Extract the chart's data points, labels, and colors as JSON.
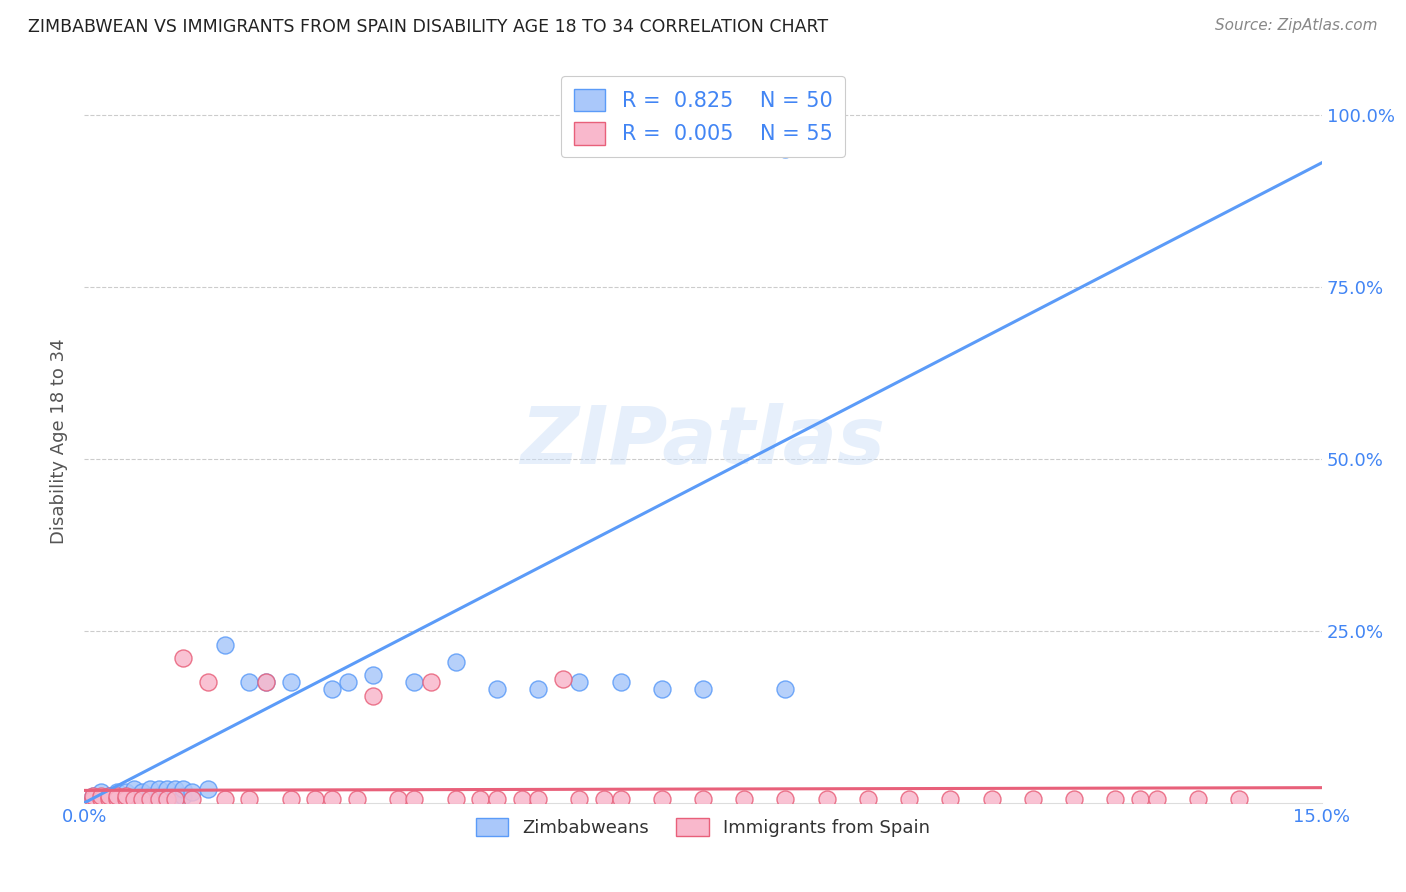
{
  "title": "ZIMBABWEAN VS IMMIGRANTS FROM SPAIN DISABILITY AGE 18 TO 34 CORRELATION CHART",
  "source": "Source: ZipAtlas.com",
  "ylabel": "Disability Age 18 to 34",
  "xlim": [
    0.0,
    0.15
  ],
  "ylim": [
    0.0,
    1.05
  ],
  "xtick_positions": [
    0.0,
    0.05,
    0.1,
    0.15
  ],
  "xtick_labels": [
    "0.0%",
    "",
    "",
    "15.0%"
  ],
  "ytick_positions": [
    0.0,
    0.25,
    0.5,
    0.75,
    1.0
  ],
  "ytick_labels": [
    "",
    "25.0%",
    "50.0%",
    "75.0%",
    "100.0%"
  ],
  "blue_R": 0.825,
  "blue_N": 50,
  "pink_R": 0.005,
  "pink_N": 55,
  "blue_color": "#aac8fa",
  "blue_edge": "#5b9bf8",
  "pink_color": "#f9b8cc",
  "pink_edge": "#e8607a",
  "watermark": "ZIPatlas",
  "blue_scatter_x": [
    0.001,
    0.001,
    0.002,
    0.002,
    0.003,
    0.003,
    0.004,
    0.004,
    0.004,
    0.005,
    0.005,
    0.005,
    0.006,
    0.006,
    0.006,
    0.007,
    0.007,
    0.007,
    0.008,
    0.008,
    0.008,
    0.009,
    0.009,
    0.009,
    0.01,
    0.01,
    0.01,
    0.011,
    0.011,
    0.012,
    0.012,
    0.013,
    0.015,
    0.017,
    0.02,
    0.022,
    0.025,
    0.03,
    0.032,
    0.035,
    0.04,
    0.045,
    0.05,
    0.055,
    0.06,
    0.065,
    0.07,
    0.075,
    0.085,
    0.085
  ],
  "blue_scatter_y": [
    0.005,
    0.01,
    0.005,
    0.015,
    0.005,
    0.01,
    0.005,
    0.01,
    0.015,
    0.005,
    0.01,
    0.015,
    0.005,
    0.01,
    0.02,
    0.005,
    0.01,
    0.015,
    0.005,
    0.01,
    0.02,
    0.005,
    0.01,
    0.02,
    0.005,
    0.01,
    0.02,
    0.01,
    0.02,
    0.01,
    0.02,
    0.015,
    0.02,
    0.23,
    0.175,
    0.175,
    0.175,
    0.165,
    0.175,
    0.185,
    0.175,
    0.205,
    0.165,
    0.165,
    0.175,
    0.175,
    0.165,
    0.165,
    0.165,
    0.95
  ],
  "pink_scatter_x": [
    0.001,
    0.001,
    0.002,
    0.002,
    0.003,
    0.003,
    0.004,
    0.004,
    0.005,
    0.005,
    0.006,
    0.007,
    0.008,
    0.009,
    0.01,
    0.011,
    0.012,
    0.013,
    0.015,
    0.017,
    0.02,
    0.022,
    0.025,
    0.028,
    0.03,
    0.033,
    0.035,
    0.038,
    0.04,
    0.042,
    0.045,
    0.048,
    0.05,
    0.053,
    0.055,
    0.058,
    0.06,
    0.063,
    0.065,
    0.07,
    0.075,
    0.08,
    0.085,
    0.09,
    0.095,
    0.1,
    0.105,
    0.11,
    0.115,
    0.12,
    0.125,
    0.128,
    0.13,
    0.135,
    0.14
  ],
  "pink_scatter_y": [
    0.005,
    0.01,
    0.005,
    0.01,
    0.005,
    0.01,
    0.005,
    0.01,
    0.005,
    0.01,
    0.005,
    0.005,
    0.005,
    0.005,
    0.005,
    0.005,
    0.21,
    0.005,
    0.175,
    0.005,
    0.005,
    0.175,
    0.005,
    0.005,
    0.005,
    0.005,
    0.155,
    0.005,
    0.005,
    0.175,
    0.005,
    0.005,
    0.005,
    0.005,
    0.005,
    0.18,
    0.005,
    0.005,
    0.005,
    0.005,
    0.005,
    0.005,
    0.005,
    0.005,
    0.005,
    0.005,
    0.005,
    0.005,
    0.005,
    0.005,
    0.005,
    0.005,
    0.005,
    0.005,
    0.005
  ],
  "blue_line_x": [
    0.0,
    0.15
  ],
  "blue_line_y": [
    0.0,
    0.93
  ],
  "pink_line_x": [
    0.0,
    0.15
  ],
  "pink_line_y": [
    0.018,
    0.022
  ],
  "grid_color": "#cccccc",
  "bg_color": "#ffffff",
  "tick_color": "#4285f4",
  "label_color": "#555555"
}
